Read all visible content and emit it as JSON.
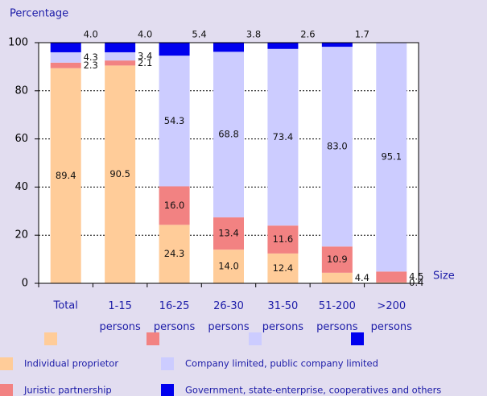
{
  "chart_data": {
    "type": "stacked_bar",
    "y_label": "Percentage",
    "x_label": "Size",
    "categories": [
      "Total",
      "1-15 persons",
      "16-25 persons",
      "26-30 persons",
      "31-50 persons",
      "51-200 persons",
      ">200 persons"
    ],
    "series": [
      {
        "name": "Individual proprietor",
        "color": "#ffcc99",
        "values": [
          89.4,
          90.5,
          24.3,
          14.0,
          12.4,
          4.4,
          0.4
        ],
        "value_labels": [
          "89.4",
          "90.5",
          "24.3",
          "14.0",
          "12.4",
          "4.4",
          "0.4"
        ]
      },
      {
        "name": "Juristic partnership",
        "color": "#f28282",
        "values": [
          2.3,
          2.1,
          16.0,
          13.4,
          11.6,
          10.9,
          4.5
        ],
        "value_labels": [
          "2.3",
          "2.1",
          "16.0",
          "13.4",
          "11.6",
          "10.9",
          "4.5"
        ]
      },
      {
        "name": "Company limited, public company limited",
        "color": "#ccccff",
        "values": [
          4.3,
          3.4,
          54.3,
          68.8,
          73.4,
          83.0,
          95.1
        ],
        "value_labels": [
          "4.3",
          "3.4",
          "54.3",
          "68.8",
          "73.4",
          "83.0",
          "95.1"
        ]
      },
      {
        "name": "Government, state-enterprise, cooperatives and others",
        "color": "#0000ee",
        "values": [
          4.0,
          4.0,
          5.4,
          3.8,
          2.6,
          1.7,
          null
        ],
        "value_labels": [
          "4.0",
          "4.0",
          "5.4",
          "3.8",
          "2.6",
          "1.7",
          null
        ]
      }
    ],
    "ylim": [
      0,
      100
    ],
    "yticks": [
      0,
      20,
      40,
      60,
      80,
      100
    ],
    "grid": true
  }
}
